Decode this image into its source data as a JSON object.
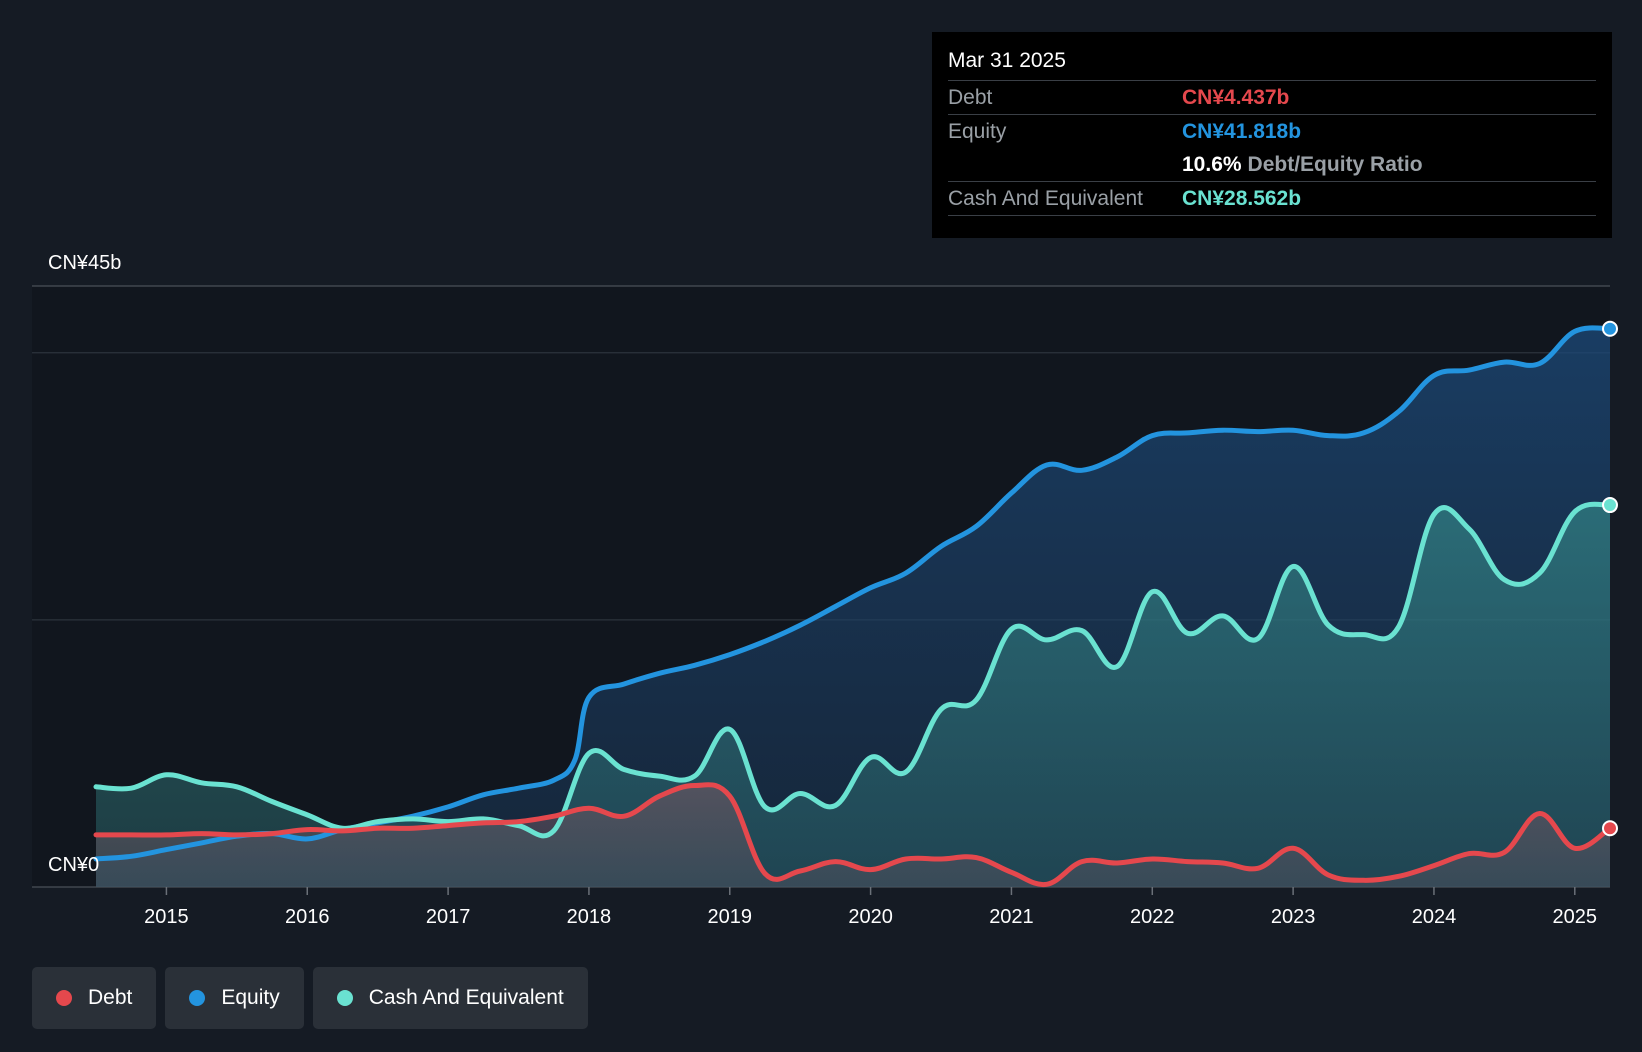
{
  "tooltip": {
    "date": "Mar 31 2025",
    "rows": [
      {
        "label": "Debt",
        "value": "CN¥4.437b",
        "color": "#e5484d"
      },
      {
        "label": "Equity",
        "value": "CN¥41.818b",
        "color": "#2394df"
      },
      {
        "label": "",
        "value": "10.6%",
        "desc": "Debt/Equity Ratio",
        "color": "#ffffff"
      },
      {
        "label": "Cash And Equivalent",
        "value": "CN¥28.562b",
        "color": "#6ae2d1"
      }
    ]
  },
  "legend": [
    {
      "label": "Debt",
      "color": "#e5484d"
    },
    {
      "label": "Equity",
      "color": "#2394df"
    },
    {
      "label": "Cash And Equivalent",
      "color": "#6ae2d1"
    }
  ],
  "chart_data": {
    "type": "area",
    "title": "",
    "xlabel": "",
    "ylabel": "",
    "ylim": [
      0,
      45
    ],
    "xlim": [
      2014.5,
      2025.25
    ],
    "y_axis_labels": [
      {
        "value": 45,
        "label": "CN¥45b"
      },
      {
        "value": 0,
        "label": "CN¥0"
      }
    ],
    "gridlines": [
      40,
      20,
      0
    ],
    "x_ticks": [
      2015,
      2016,
      2017,
      2018,
      2019,
      2020,
      2021,
      2022,
      2023,
      2024,
      2025
    ],
    "x_tick_labels": [
      "2015",
      "2016",
      "2017",
      "2018",
      "2019",
      "2020",
      "2021",
      "2022",
      "2023",
      "2024",
      "2025"
    ],
    "series": [
      {
        "name": "Equity",
        "color": "#2394df",
        "points": [
          [
            2014.5,
            2.1
          ],
          [
            2014.75,
            2.3
          ],
          [
            2015.0,
            2.8
          ],
          [
            2015.25,
            3.3
          ],
          [
            2015.5,
            3.8
          ],
          [
            2015.75,
            4.0
          ],
          [
            2016.0,
            3.6
          ],
          [
            2016.25,
            4.3
          ],
          [
            2016.5,
            4.8
          ],
          [
            2016.75,
            5.3
          ],
          [
            2017.0,
            6.0
          ],
          [
            2017.25,
            6.9
          ],
          [
            2017.5,
            7.4
          ],
          [
            2017.75,
            8.0
          ],
          [
            2017.9,
            9.5
          ],
          [
            2018.0,
            14.2
          ],
          [
            2018.25,
            15.2
          ],
          [
            2018.5,
            16.0
          ],
          [
            2018.75,
            16.6
          ],
          [
            2019.0,
            17.4
          ],
          [
            2019.25,
            18.4
          ],
          [
            2019.5,
            19.6
          ],
          [
            2019.75,
            21.0
          ],
          [
            2020.0,
            22.4
          ],
          [
            2020.25,
            23.5
          ],
          [
            2020.5,
            25.5
          ],
          [
            2020.75,
            27.0
          ],
          [
            2021.0,
            29.5
          ],
          [
            2021.25,
            31.6
          ],
          [
            2021.5,
            31.2
          ],
          [
            2021.75,
            32.2
          ],
          [
            2022.0,
            33.8
          ],
          [
            2022.25,
            34.0
          ],
          [
            2022.5,
            34.2
          ],
          [
            2022.75,
            34.1
          ],
          [
            2023.0,
            34.2
          ],
          [
            2023.25,
            33.8
          ],
          [
            2023.5,
            34.0
          ],
          [
            2023.75,
            35.6
          ],
          [
            2024.0,
            38.3
          ],
          [
            2024.25,
            38.7
          ],
          [
            2024.5,
            39.3
          ],
          [
            2024.75,
            39.2
          ],
          [
            2025.0,
            41.6
          ],
          [
            2025.25,
            41.8
          ]
        ]
      },
      {
        "name": "Cash And Equivalent",
        "color": "#6ae2d1",
        "points": [
          [
            2014.5,
            7.5
          ],
          [
            2014.75,
            7.4
          ],
          [
            2015.0,
            8.4
          ],
          [
            2015.25,
            7.8
          ],
          [
            2015.5,
            7.5
          ],
          [
            2015.75,
            6.4
          ],
          [
            2016.0,
            5.4
          ],
          [
            2016.25,
            4.4
          ],
          [
            2016.5,
            4.9
          ],
          [
            2016.75,
            5.1
          ],
          [
            2017.0,
            4.9
          ],
          [
            2017.25,
            5.1
          ],
          [
            2017.5,
            4.6
          ],
          [
            2017.75,
            4.2
          ],
          [
            2018.0,
            10.0
          ],
          [
            2018.25,
            8.8
          ],
          [
            2018.5,
            8.3
          ],
          [
            2018.75,
            8.3
          ],
          [
            2019.0,
            11.8
          ],
          [
            2019.25,
            6.0
          ],
          [
            2019.5,
            7.0
          ],
          [
            2019.75,
            6.1
          ],
          [
            2020.0,
            9.7
          ],
          [
            2020.25,
            8.6
          ],
          [
            2020.5,
            13.3
          ],
          [
            2020.75,
            14.0
          ],
          [
            2021.0,
            19.3
          ],
          [
            2021.25,
            18.5
          ],
          [
            2021.5,
            19.2
          ],
          [
            2021.75,
            16.5
          ],
          [
            2022.0,
            22.1
          ],
          [
            2022.25,
            19.0
          ],
          [
            2022.5,
            20.3
          ],
          [
            2022.75,
            18.6
          ],
          [
            2023.0,
            24.0
          ],
          [
            2023.25,
            19.6
          ],
          [
            2023.5,
            18.9
          ],
          [
            2023.75,
            19.5
          ],
          [
            2024.0,
            27.9
          ],
          [
            2024.25,
            26.8
          ],
          [
            2024.5,
            23.0
          ],
          [
            2024.75,
            23.5
          ],
          [
            2025.0,
            28.1
          ],
          [
            2025.25,
            28.6
          ]
        ]
      },
      {
        "name": "Debt",
        "color": "#e5484d",
        "points": [
          [
            2014.5,
            3.9
          ],
          [
            2014.75,
            3.9
          ],
          [
            2015.0,
            3.9
          ],
          [
            2015.25,
            4.0
          ],
          [
            2015.5,
            3.9
          ],
          [
            2015.75,
            4.0
          ],
          [
            2016.0,
            4.3
          ],
          [
            2016.25,
            4.2
          ],
          [
            2016.5,
            4.4
          ],
          [
            2016.75,
            4.4
          ],
          [
            2017.0,
            4.6
          ],
          [
            2017.25,
            4.8
          ],
          [
            2017.5,
            4.9
          ],
          [
            2017.75,
            5.3
          ],
          [
            2018.0,
            5.9
          ],
          [
            2018.25,
            5.3
          ],
          [
            2018.5,
            6.8
          ],
          [
            2018.75,
            7.6
          ],
          [
            2019.0,
            6.8
          ],
          [
            2019.25,
            1.0
          ],
          [
            2019.5,
            1.2
          ],
          [
            2019.75,
            1.9
          ],
          [
            2020.0,
            1.3
          ],
          [
            2020.25,
            2.1
          ],
          [
            2020.5,
            2.1
          ],
          [
            2020.75,
            2.2
          ],
          [
            2021.0,
            1.1
          ],
          [
            2021.25,
            0.2
          ],
          [
            2021.5,
            1.9
          ],
          [
            2021.75,
            1.8
          ],
          [
            2022.0,
            2.1
          ],
          [
            2022.25,
            1.9
          ],
          [
            2022.5,
            1.8
          ],
          [
            2022.75,
            1.4
          ],
          [
            2023.0,
            2.9
          ],
          [
            2023.25,
            0.9
          ],
          [
            2023.5,
            0.5
          ],
          [
            2023.75,
            0.8
          ],
          [
            2024.0,
            1.6
          ],
          [
            2024.25,
            2.5
          ],
          [
            2024.5,
            2.6
          ],
          [
            2024.75,
            5.5
          ],
          [
            2025.0,
            2.9
          ],
          [
            2025.25,
            4.4
          ]
        ]
      }
    ]
  }
}
